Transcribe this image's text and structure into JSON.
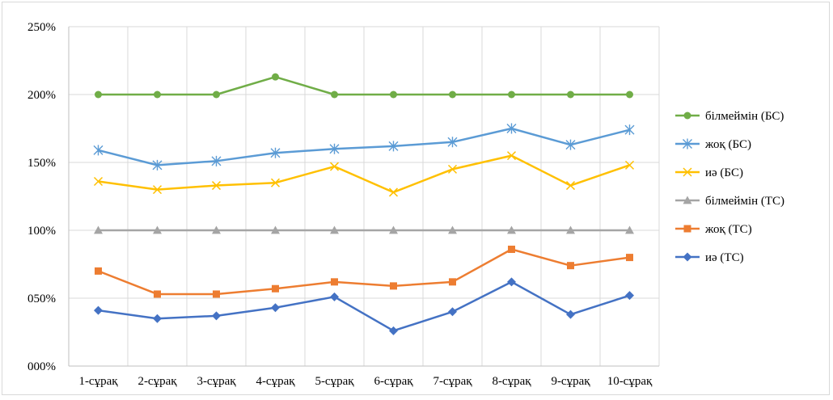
{
  "chart_data": {
    "type": "line",
    "title": "",
    "xlabel": "",
    "ylabel": "",
    "categories": [
      "1-сұрақ",
      "2-сұрақ",
      "3-сұрақ",
      "4-сұрақ",
      "5-сұрақ",
      "6-сұрақ",
      "7-сұрақ",
      "8-сұрақ",
      "9-сұрақ",
      "10-сұрақ"
    ],
    "ylim": [
      0,
      250
    ],
    "yticks": [
      0,
      50,
      100,
      150,
      200,
      250
    ],
    "ytick_labels": [
      "000%",
      "050%",
      "100%",
      "150%",
      "200%",
      "250%"
    ],
    "grid": "both",
    "legend_position": "right",
    "series": [
      {
        "name": "білмеймін (БС)",
        "color": "#70AD47",
        "marker": "circle",
        "values": [
          200,
          200,
          200,
          213,
          200,
          200,
          200,
          200,
          200,
          200
        ]
      },
      {
        "name": "жоқ (БС)",
        "color": "#5B9BD5",
        "marker": "asterisk",
        "values": [
          159,
          148,
          151,
          157,
          160,
          162,
          165,
          175,
          163,
          174
        ]
      },
      {
        "name": "иә (БС)",
        "color": "#FFC000",
        "marker": "x",
        "values": [
          136,
          130,
          133,
          135,
          147,
          128,
          145,
          155,
          133,
          148
        ]
      },
      {
        "name": "білмеймін (ТС)",
        "color": "#A5A5A5",
        "marker": "triangle",
        "values": [
          100,
          100,
          100,
          100,
          100,
          100,
          100,
          100,
          100,
          100
        ]
      },
      {
        "name": "жоқ (ТС)",
        "color": "#ED7D31",
        "marker": "square",
        "values": [
          70,
          53,
          53,
          57,
          62,
          59,
          62,
          86,
          74,
          80
        ]
      },
      {
        "name": "иә (ТС)",
        "color": "#4472C4",
        "marker": "diamond",
        "values": [
          41,
          35,
          37,
          43,
          51,
          26,
          40,
          62,
          38,
          52
        ]
      }
    ]
  }
}
